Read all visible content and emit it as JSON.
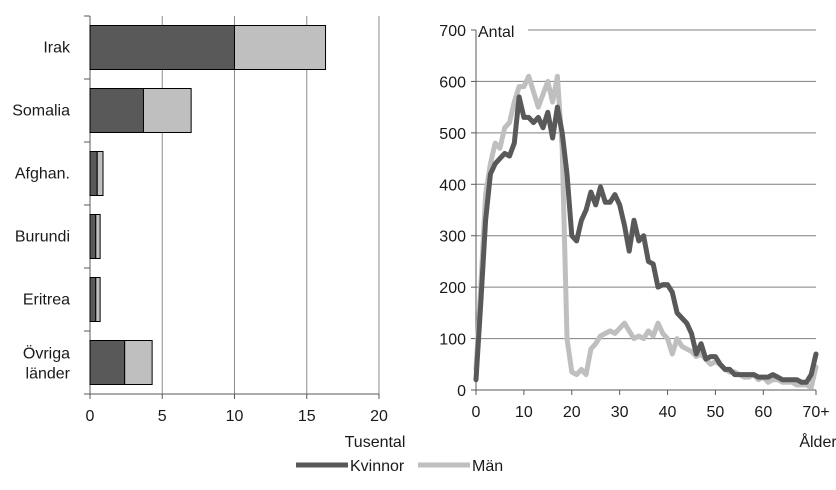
{
  "chart_data": [
    {
      "type": "bar",
      "orientation": "horizontal",
      "stacked": true,
      "categories": [
        "Irak",
        "Somalia",
        "Afghan.",
        "Burundi",
        "Eritrea",
        "Övriga länder"
      ],
      "series": [
        {
          "color": "#595959",
          "values": [
            10.0,
            3.7,
            0.5,
            0.4,
            0.4,
            2.4
          ]
        },
        {
          "color": "#bfbfbf",
          "values": [
            6.3,
            3.3,
            0.4,
            0.3,
            0.3,
            1.9
          ]
        }
      ],
      "xlim": [
        0,
        20
      ],
      "xticks": [
        "0",
        "5",
        "10",
        "15",
        "20"
      ],
      "xlabel": "Tusental",
      "grid": true
    },
    {
      "type": "line",
      "ylim": [
        0,
        700
      ],
      "yticks": [
        "0",
        "100",
        "200",
        "300",
        "400",
        "500",
        "600",
        "700"
      ],
      "xlim": [
        0,
        71
      ],
      "xticks": [
        "0",
        "10",
        "20",
        "30",
        "40",
        "50",
        "60",
        "70+"
      ],
      "ylabel": "Antal",
      "xlabel": "Ålder",
      "grid": true,
      "legend": "bottom",
      "series": [
        {
          "name": "Kvinnor",
          "color": "#595959",
          "x": [
            0,
            1,
            2,
            3,
            4,
            5,
            6,
            7,
            8,
            9,
            10,
            11,
            12,
            13,
            14,
            15,
            16,
            17,
            18,
            19,
            20,
            21,
            22,
            23,
            24,
            25,
            26,
            27,
            28,
            29,
            30,
            31,
            32,
            33,
            34,
            35,
            36,
            37,
            38,
            39,
            40,
            41,
            42,
            43,
            44,
            45,
            46,
            47,
            48,
            49,
            50,
            51,
            52,
            53,
            54,
            55,
            56,
            57,
            58,
            59,
            60,
            61,
            62,
            63,
            64,
            65,
            66,
            67,
            68,
            69,
            70,
            71
          ],
          "y": [
            20,
            170,
            330,
            420,
            440,
            450,
            460,
            455,
            480,
            570,
            530,
            530,
            520,
            530,
            510,
            540,
            490,
            550,
            500,
            420,
            300,
            290,
            330,
            350,
            385,
            360,
            395,
            365,
            365,
            380,
            360,
            320,
            270,
            330,
            290,
            300,
            250,
            245,
            200,
            205,
            205,
            190,
            150,
            140,
            130,
            110,
            70,
            90,
            60,
            65,
            65,
            50,
            40,
            40,
            30,
            30,
            30,
            30,
            30,
            25,
            25,
            25,
            30,
            25,
            20,
            20,
            20,
            20,
            15,
            15,
            30,
            70
          ]
        },
        {
          "name": "Män",
          "color": "#bfbfbf",
          "x": [
            0,
            1,
            2,
            3,
            4,
            5,
            6,
            7,
            8,
            9,
            10,
            11,
            12,
            13,
            14,
            15,
            16,
            17,
            18,
            19,
            20,
            21,
            22,
            23,
            24,
            25,
            26,
            27,
            28,
            29,
            30,
            31,
            32,
            33,
            34,
            35,
            36,
            37,
            38,
            39,
            40,
            41,
            42,
            43,
            44,
            45,
            46,
            47,
            48,
            49,
            50,
            51,
            52,
            53,
            54,
            55,
            56,
            57,
            58,
            59,
            60,
            61,
            62,
            63,
            64,
            65,
            66,
            67,
            68,
            69,
            70,
            71
          ],
          "y": [
            40,
            200,
            380,
            440,
            480,
            470,
            510,
            520,
            560,
            590,
            590,
            610,
            580,
            550,
            575,
            600,
            560,
            610,
            470,
            100,
            35,
            30,
            40,
            30,
            80,
            90,
            105,
            110,
            115,
            110,
            120,
            130,
            115,
            100,
            105,
            100,
            115,
            105,
            130,
            110,
            100,
            70,
            100,
            85,
            80,
            75,
            65,
            70,
            60,
            50,
            55,
            50,
            40,
            35,
            35,
            30,
            25,
            25,
            30,
            20,
            25,
            15,
            20,
            20,
            15,
            15,
            15,
            10,
            10,
            10,
            5,
            45
          ]
        }
      ]
    }
  ]
}
